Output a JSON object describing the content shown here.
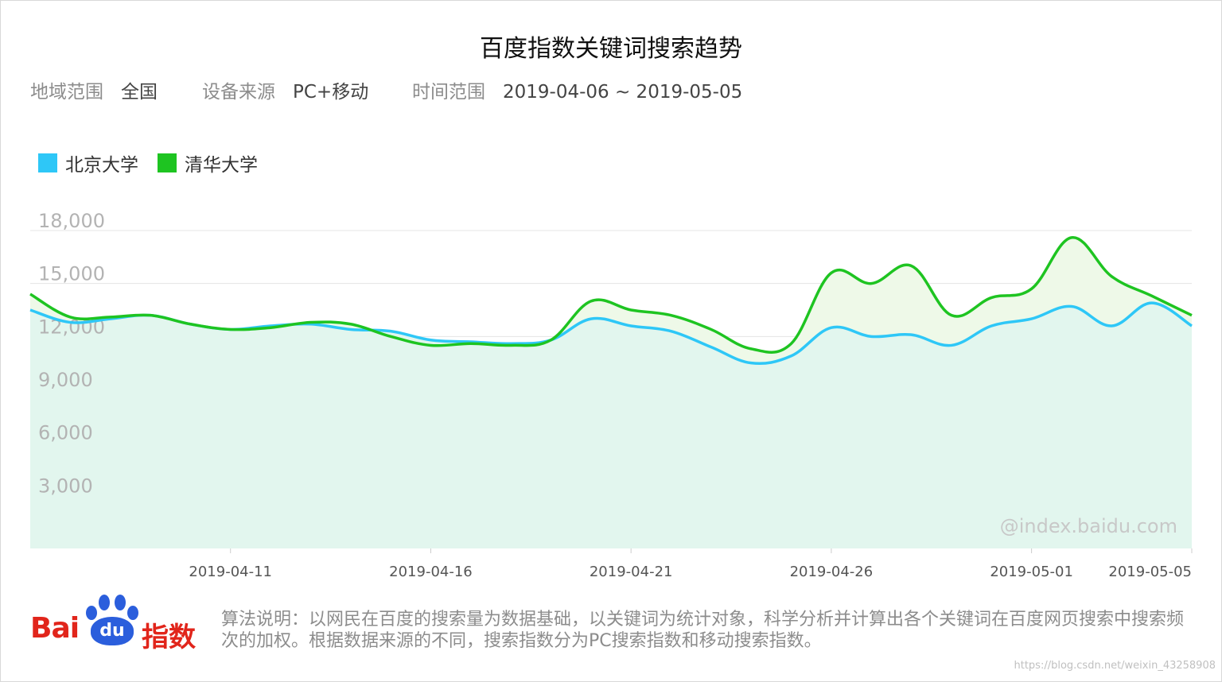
{
  "title": "百度指数关键词搜索趋势",
  "meta": {
    "region_label": "地域范围",
    "region_value": "全国",
    "device_label": "设备来源",
    "device_value": "PC+移动",
    "time_label": "时间范围",
    "time_value": "2019-04-06 ~ 2019-05-05"
  },
  "watermark": "@index.baidu.com",
  "footnote": "算法说明：以网民在百度的搜索量为数据基础，以关键词为统计对象，科学分析并计算出各个关键词在百度网页搜索中搜索频次的加权。根据数据来源的不同，搜索指数分为PC搜索指数和移动搜索指数。",
  "logo": {
    "text": "Bai",
    "paw_text": "du",
    "suffix": "指数"
  },
  "credit": "https://blog.csdn.net/weixin_43258908",
  "colors": {
    "pku": "#2ec7f7",
    "thu": "#1ec421",
    "pku_fill": "#e2f6ee",
    "thu_fill": "#eef9e8",
    "grid": "#e5e5e5"
  },
  "chart_data": {
    "type": "area",
    "x": [
      "2019-04-06",
      "2019-04-07",
      "2019-04-08",
      "2019-04-09",
      "2019-04-10",
      "2019-04-11",
      "2019-04-12",
      "2019-04-13",
      "2019-04-14",
      "2019-04-15",
      "2019-04-16",
      "2019-04-17",
      "2019-04-18",
      "2019-04-19",
      "2019-04-20",
      "2019-04-21",
      "2019-04-22",
      "2019-04-23",
      "2019-04-24",
      "2019-04-25",
      "2019-04-26",
      "2019-04-27",
      "2019-04-28",
      "2019-04-29",
      "2019-04-30",
      "2019-05-01",
      "2019-05-02",
      "2019-05-03",
      "2019-05-04",
      "2019-05-05"
    ],
    "x_ticks": [
      "2019-04-11",
      "2019-04-16",
      "2019-04-21",
      "2019-04-26",
      "2019-05-01",
      "2019-05-05"
    ],
    "y_ticks": [
      3000,
      6000,
      9000,
      12000,
      15000,
      18000
    ],
    "y_tick_labels": [
      "3,000",
      "6,000",
      "9,000",
      "12,000",
      "15,000",
      "18,000"
    ],
    "ylim": [
      0,
      18000
    ],
    "grid": true,
    "legend_position": "top-left",
    "series": [
      {
        "name": "北京大学",
        "values": [
          13500,
          12800,
          13000,
          13200,
          12700,
          12400,
          12600,
          12700,
          12400,
          12300,
          11800,
          11700,
          11600,
          11800,
          13000,
          12600,
          12300,
          11400,
          10500,
          10900,
          12500,
          12000,
          12100,
          11500,
          12600,
          13000,
          13700,
          12600,
          13900,
          12600
        ]
      },
      {
        "name": "清华大学",
        "values": [
          14400,
          13100,
          13100,
          13200,
          12700,
          12400,
          12500,
          12800,
          12700,
          12000,
          11500,
          11600,
          11500,
          11800,
          14000,
          13500,
          13200,
          12400,
          11300,
          11600,
          15600,
          15000,
          16000,
          13200,
          14200,
          14700,
          17600,
          15400,
          14300,
          13200
        ]
      }
    ]
  }
}
